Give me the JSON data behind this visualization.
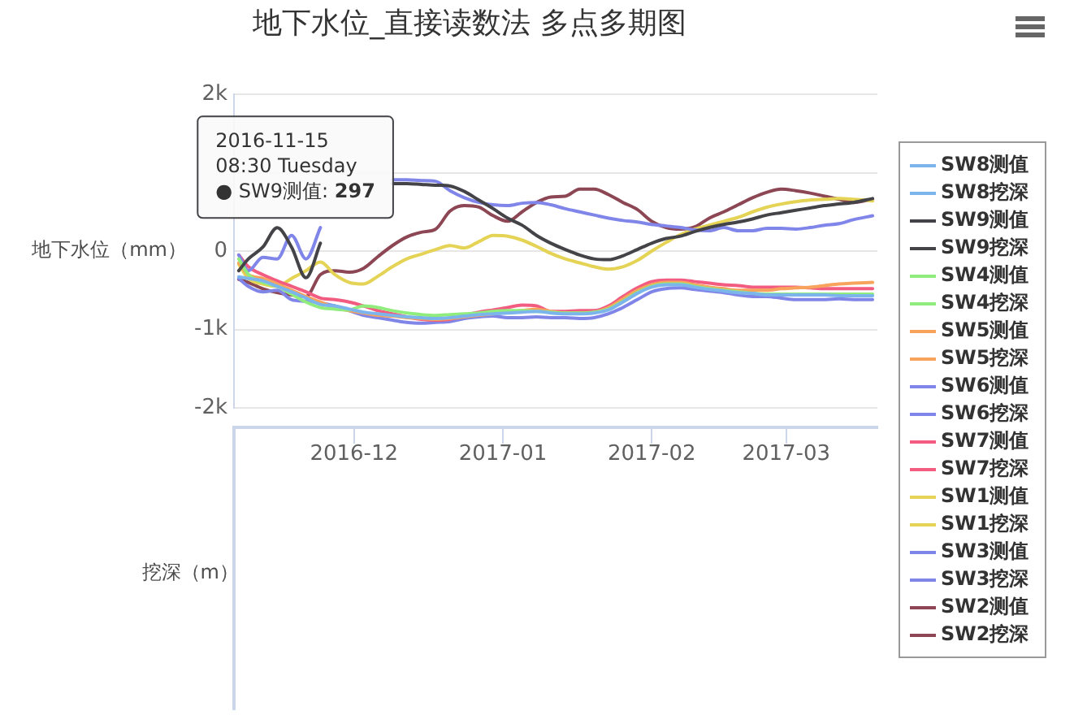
{
  "chart_data": {
    "type": "line",
    "title": "地下水位_直接读数法 多点多期图",
    "ylabel": "地下水位（mm）",
    "y2label": "挖深（m）",
    "x": [
      "2016-11-07",
      "2016-11-09",
      "2016-11-12",
      "2016-11-15",
      "2016-11-18",
      "2016-11-21",
      "2016-11-24",
      "2016-11-27",
      "2016-11-30",
      "2016-12-03",
      "2016-12-06",
      "2016-12-09",
      "2016-12-12",
      "2016-12-15",
      "2016-12-18",
      "2016-12-21",
      "2016-12-24",
      "2016-12-27",
      "2016-12-30",
      "2017-01-02",
      "2017-01-05",
      "2017-01-08",
      "2017-01-11",
      "2017-01-14",
      "2017-01-17",
      "2017-01-20",
      "2017-01-23",
      "2017-01-26",
      "2017-01-29",
      "2017-02-01",
      "2017-02-04",
      "2017-02-07",
      "2017-02-10",
      "2017-02-13",
      "2017-02-16",
      "2017-02-19",
      "2017-02-22",
      "2017-02-25",
      "2017-02-28",
      "2017-03-03",
      "2017-03-06",
      "2017-03-09",
      "2017-03-12",
      "2017-03-15",
      "2017-03-19"
    ],
    "xlim": [
      "2016-11-06",
      "2017-03-20"
    ],
    "xticks": [
      "2016-12",
      "2017-01",
      "2017-02",
      "2017-03"
    ],
    "ylim": [
      -2000,
      2000
    ],
    "yticks": [
      {
        "value": -2000,
        "label": "-2k"
      },
      {
        "value": -1000,
        "label": "-1k"
      },
      0,
      {
        "value": 1000,
        "label": null
      },
      {
        "value": 2000,
        "label": "2k"
      }
    ],
    "grid": "y",
    "legend": "right",
    "marker": "none",
    "series": [
      {
        "name": "SW8测值",
        "color": "#7cb5ec",
        "values": [
          -330,
          -350,
          -380,
          -450,
          -520,
          -600,
          -680,
          -700,
          -740,
          -780,
          -800,
          -820,
          -840,
          -850,
          -860,
          -850,
          -830,
          -810,
          -800,
          -790,
          -780,
          -770,
          -790,
          -800,
          -800,
          -790,
          -750,
          -650,
          -540,
          -460,
          -430,
          -430,
          -460,
          -490,
          -510,
          -530,
          -540,
          -560,
          -560,
          -560,
          -560,
          -560,
          -570,
          -570,
          -570
        ]
      },
      {
        "name": "SW8挖深",
        "color": "#7cb5ec",
        "values": [
          null,
          null,
          null,
          null,
          null,
          null,
          null,
          null,
          null,
          null,
          null,
          null,
          null,
          null,
          null,
          null,
          null,
          null,
          null,
          null,
          null,
          null,
          null,
          null,
          null,
          null,
          null,
          null,
          null,
          null,
          null,
          null,
          null,
          null,
          null,
          null,
          null,
          null,
          null,
          null,
          null,
          null,
          null,
          null,
          null
        ]
      },
      {
        "name": "SW9测值",
        "color": "#434348",
        "values": [
          -250,
          -100,
          50,
          297,
          50,
          -340,
          100,
          null,
          null,
          null,
          null,
          860,
          860,
          850,
          840,
          830,
          760,
          650,
          540,
          420,
          330,
          200,
          100,
          20,
          -50,
          -100,
          -110,
          -60,
          20,
          100,
          160,
          190,
          250,
          300,
          340,
          370,
          410,
          460,
          490,
          520,
          550,
          580,
          600,
          620,
          670
        ]
      },
      {
        "name": "SW9挖深",
        "color": "#434348",
        "values": [
          null,
          null,
          null,
          null,
          null,
          null,
          null,
          null,
          null,
          null,
          null,
          null,
          null,
          null,
          null,
          null,
          null,
          null,
          null,
          null,
          null,
          null,
          null,
          null,
          null,
          null,
          null,
          null,
          null,
          null,
          null,
          null,
          null,
          null,
          null,
          null,
          null,
          null,
          null,
          null,
          null,
          null,
          null,
          null,
          null
        ]
      },
      {
        "name": "SW4测值",
        "color": "#90ed7d",
        "values": [
          -100,
          -300,
          -400,
          -450,
          -550,
          -650,
          -720,
          -740,
          -750,
          -700,
          -720,
          -760,
          -790,
          -810,
          -820,
          -810,
          -800,
          -790,
          -770,
          -760,
          -760,
          -770,
          -780,
          -790,
          -790,
          -780,
          -740,
          -640,
          -530,
          -450,
          -420,
          -420,
          -450,
          -480,
          -500,
          -520,
          -540,
          -550,
          -550,
          -550,
          -550,
          -550,
          -550,
          -550,
          -550
        ]
      },
      {
        "name": "SW4挖深",
        "color": "#90ed7d",
        "values": [
          null,
          null,
          null,
          null,
          null,
          null,
          null,
          null,
          null,
          null,
          null,
          null,
          null,
          null,
          null,
          null,
          null,
          null,
          null,
          null,
          null,
          null,
          null,
          null,
          null,
          null,
          null,
          null,
          null,
          null,
          null,
          null,
          null,
          null,
          null,
          null,
          null,
          null,
          null,
          null,
          null,
          null,
          null,
          null,
          null
        ]
      },
      {
        "name": "SW5测值",
        "color": "#f7a35c",
        "values": [
          -150,
          -300,
          -350,
          -420,
          -500,
          -580,
          -650,
          -720,
          -760,
          -790,
          -820,
          -830,
          -850,
          -860,
          -870,
          -860,
          -840,
          -820,
          -800,
          -780,
          -760,
          -740,
          -770,
          -790,
          -790,
          -780,
          -720,
          -610,
          -500,
          -430,
          -400,
          -400,
          -430,
          -460,
          -480,
          -500,
          -500,
          -500,
          -480,
          -470,
          -460,
          -440,
          -420,
          -410,
          -400
        ]
      },
      {
        "name": "SW5挖深",
        "color": "#f7a35c",
        "values": [
          null,
          null,
          null,
          null,
          null,
          null,
          null,
          null,
          null,
          null,
          null,
          null,
          null,
          null,
          null,
          null,
          null,
          null,
          null,
          null,
          null,
          null,
          null,
          null,
          null,
          null,
          null,
          null,
          null,
          null,
          null,
          null,
          null,
          null,
          null,
          null,
          null,
          null,
          null,
          null,
          null,
          null,
          null,
          null,
          null
        ]
      },
      {
        "name": "SW6测值",
        "color": "#8085e9",
        "values": [
          -50,
          -250,
          -80,
          -100,
          200,
          -100,
          300,
          null,
          null,
          null,
          null,
          910,
          910,
          900,
          890,
          770,
          680,
          620,
          590,
          580,
          610,
          620,
          590,
          540,
          500,
          460,
          420,
          390,
          370,
          340,
          320,
          300,
          270,
          260,
          300,
          260,
          260,
          290,
          290,
          280,
          300,
          330,
          350,
          400,
          450
        ]
      },
      {
        "name": "SW6挖深",
        "color": "#8085e9",
        "values": [
          null,
          null,
          null,
          null,
          null,
          null,
          null,
          null,
          null,
          null,
          null,
          null,
          null,
          null,
          null,
          null,
          null,
          null,
          null,
          null,
          null,
          null,
          null,
          null,
          null,
          null,
          null,
          null,
          null,
          null,
          null,
          null,
          null,
          null,
          null,
          null,
          null,
          null,
          null,
          null,
          null,
          null,
          null,
          null,
          null
        ]
      },
      {
        "name": "SW7测值",
        "color": "#f15c80",
        "values": [
          -50,
          -200,
          -300,
          -380,
          -450,
          -520,
          -600,
          -620,
          -650,
          -700,
          -760,
          -800,
          -840,
          -870,
          -880,
          -870,
          -820,
          -780,
          -750,
          -720,
          -690,
          -700,
          -770,
          -770,
          -760,
          -760,
          -700,
          -580,
          -470,
          -390,
          -370,
          -370,
          -390,
          -410,
          -430,
          -440,
          -460,
          -460,
          -460,
          -460,
          -470,
          -480,
          -480,
          -480,
          -480
        ]
      },
      {
        "name": "SW7挖深",
        "color": "#f15c80",
        "values": [
          null,
          null,
          null,
          null,
          null,
          null,
          null,
          null,
          null,
          null,
          null,
          null,
          null,
          null,
          null,
          null,
          null,
          null,
          null,
          null,
          null,
          null,
          null,
          null,
          null,
          null,
          null,
          null,
          null,
          null,
          null,
          null,
          null,
          null,
          null,
          null,
          null,
          null,
          null,
          null,
          null,
          null,
          null,
          null,
          null
        ]
      },
      {
        "name": "SW1测值",
        "color": "#e4d354",
        "values": [
          -170,
          -350,
          -420,
          -450,
          -350,
          -250,
          -140,
          -300,
          -400,
          -420,
          -320,
          -200,
          -100,
          -40,
          20,
          70,
          40,
          120,
          200,
          190,
          140,
          60,
          -30,
          -100,
          -150,
          -200,
          -230,
          -200,
          -120,
          0,
          110,
          210,
          280,
          330,
          380,
          430,
          500,
          560,
          600,
          630,
          650,
          660,
          670,
          660,
          640
        ]
      },
      {
        "name": "SW1挖深",
        "color": "#e4d354",
        "values": [
          null,
          null,
          null,
          null,
          null,
          null,
          null,
          null,
          null,
          null,
          null,
          null,
          null,
          null,
          null,
          null,
          null,
          null,
          null,
          null,
          null,
          null,
          null,
          null,
          null,
          null,
          null,
          null,
          null,
          null,
          null,
          null,
          null,
          null,
          null,
          null,
          null,
          null,
          null,
          null,
          null,
          null,
          null,
          null,
          null
        ]
      },
      {
        "name": "SW3测值",
        "color": "#8085e8",
        "values": [
          -350,
          -450,
          -520,
          -500,
          -620,
          -640,
          -660,
          -700,
          -760,
          -820,
          -850,
          -880,
          -910,
          -920,
          -910,
          -900,
          -860,
          -840,
          -830,
          -850,
          -850,
          -840,
          -850,
          -850,
          -860,
          -850,
          -800,
          -720,
          -620,
          -520,
          -480,
          -470,
          -490,
          -510,
          -530,
          -560,
          -580,
          -580,
          -600,
          -620,
          -620,
          -620,
          -610,
          -620,
          -620
        ]
      },
      {
        "name": "SW3挖深",
        "color": "#8085e8",
        "values": [
          null,
          null,
          null,
          null,
          null,
          null,
          null,
          null,
          null,
          null,
          null,
          null,
          null,
          null,
          null,
          null,
          null,
          null,
          null,
          null,
          null,
          null,
          null,
          null,
          null,
          null,
          null,
          null,
          null,
          null,
          null,
          null,
          null,
          null,
          null,
          null,
          null,
          null,
          null,
          null,
          null,
          null,
          null,
          null,
          null
        ]
      },
      {
        "name": "SW2测值",
        "color": "#8d4653",
        "values": [
          -360,
          -400,
          -480,
          -530,
          -560,
          -580,
          -300,
          -250,
          -270,
          -220,
          -70,
          70,
          180,
          240,
          280,
          510,
          580,
          560,
          450,
          380,
          500,
          620,
          690,
          700,
          790,
          790,
          720,
          620,
          530,
          380,
          300,
          280,
          310,
          420,
          500,
          590,
          680,
          750,
          790,
          770,
          740,
          700,
          660,
          620,
          660
        ]
      },
      {
        "name": "SW2挖深",
        "color": "#8d4653",
        "values": [
          null,
          null,
          null,
          null,
          null,
          null,
          null,
          null,
          null,
          null,
          null,
          null,
          null,
          null,
          null,
          null,
          null,
          null,
          null,
          null,
          null,
          null,
          null,
          null,
          null,
          null,
          null,
          null,
          null,
          null,
          null,
          null,
          null,
          null,
          null,
          null,
          null,
          null,
          null,
          null,
          null,
          null,
          null,
          null,
          null
        ]
      }
    ],
    "annotations": [
      {
        "text": "2016-11-15\n08:30 Tuesday\n● SW9测值: 297",
        "x": "2016-11-15T08:30",
        "y": 297
      }
    ]
  }
}
